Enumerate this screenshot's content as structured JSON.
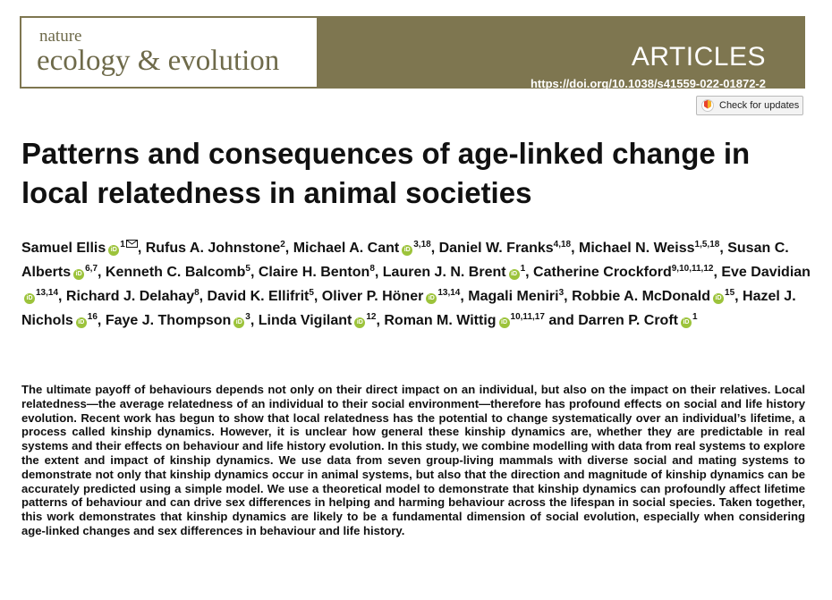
{
  "header": {
    "journal_small": "nature",
    "journal_big": "ecology & evolution",
    "section": "ARTICLES",
    "doi": "https://doi.org/10.1038/s41559-022-01872-2",
    "updates_label": "Check for updates"
  },
  "title": "Patterns and consequences of age-linked change in local relatedness in animal societies",
  "authors": [
    {
      "name": "Samuel Ellis",
      "orcid": true,
      "aff": "1",
      "mail": true,
      "sep": ", "
    },
    {
      "name": "Rufus A. Johnstone",
      "orcid": false,
      "aff": "2",
      "sep": ", "
    },
    {
      "name": "Michael A. Cant",
      "orcid": true,
      "aff": "3,18",
      "sep": ", "
    },
    {
      "name": "Daniel W. Franks",
      "orcid": false,
      "aff": "4,18",
      "sep": ", "
    },
    {
      "name": "Michael N. Weiss",
      "orcid": false,
      "aff": "1,5,18",
      "sep": ", "
    },
    {
      "name": "Susan C. Alberts",
      "orcid": true,
      "aff": "6,7",
      "sep": ", "
    },
    {
      "name": "Kenneth C. Balcomb",
      "orcid": false,
      "aff": "5",
      "sep": ", "
    },
    {
      "name": "Claire H. Benton",
      "orcid": false,
      "aff": "8",
      "sep": ", "
    },
    {
      "name": "Lauren J. N. Brent",
      "orcid": true,
      "aff": "1",
      "sep": ", "
    },
    {
      "name": "Catherine Crockford",
      "orcid": false,
      "aff": "9,10,11,12",
      "sep": ", "
    },
    {
      "name": "Eve Davidian",
      "orcid": true,
      "aff": "13,14",
      "sep": ", "
    },
    {
      "name": "Richard J. Delahay",
      "orcid": false,
      "aff": "8",
      "sep": ", "
    },
    {
      "name": "David K. Ellifrit",
      "orcid": false,
      "aff": "5",
      "sep": ", "
    },
    {
      "name": "Oliver P. Höner",
      "orcid": true,
      "aff": "13,14",
      "sep": ", "
    },
    {
      "name": "Magali Meniri",
      "orcid": false,
      "aff": "3",
      "sep": ", "
    },
    {
      "name": "Robbie A. McDonald",
      "orcid": true,
      "aff": "15",
      "sep": ", "
    },
    {
      "name": "Hazel J. Nichols",
      "orcid": true,
      "aff": "16",
      "sep": ", "
    },
    {
      "name": "Faye J. Thompson",
      "orcid": true,
      "aff": "3",
      "sep": ", "
    },
    {
      "name": "Linda Vigilant",
      "orcid": true,
      "aff": "12",
      "sep": ", "
    },
    {
      "name": "Roman M. Wittig",
      "orcid": true,
      "aff": "10,11,17",
      "sep": " and "
    },
    {
      "name": "Darren P. Croft",
      "orcid": true,
      "aff": "1",
      "sep": ""
    }
  ],
  "abstract": "The ultimate payoff of behaviours depends not only on their direct impact on an individual, but also on the impact on their relatives. Local relatedness—the average relatedness of an individual to their social environment—therefore has profound effects on social and life history evolution. Recent work has begun to show that local relatedness has the potential to change systematically over an individual’s lifetime, a process called kinship dynamics. However, it is unclear how general these kinship dynamics are, whether they are predictable in real systems and their effects on behaviour and life history evolution. In this study, we combine modelling with data from real systems to explore the extent and impact of kinship dynamics. We use data from seven group-living mammals with diverse social and mating systems to demonstrate not only that kinship dynamics occur in animal systems, but also that the direction and magnitude of kinship dynamics can be accurately predicted using a simple model. We use a theoretical model to demonstrate that kinship dynamics can profoundly affect lifetime patterns of behaviour and can drive sex differences in helping and harming behaviour across the lifespan in social species. Taken together, this work demonstrates that kinship dynamics are likely to be a fundamental dimension of social evolution, especially when considering age-linked changes and sex differences in behaviour and life history.",
  "colors": {
    "band": "#7e7650",
    "journal_text": "#6e6a4a",
    "orcid": "#9cc33b"
  }
}
